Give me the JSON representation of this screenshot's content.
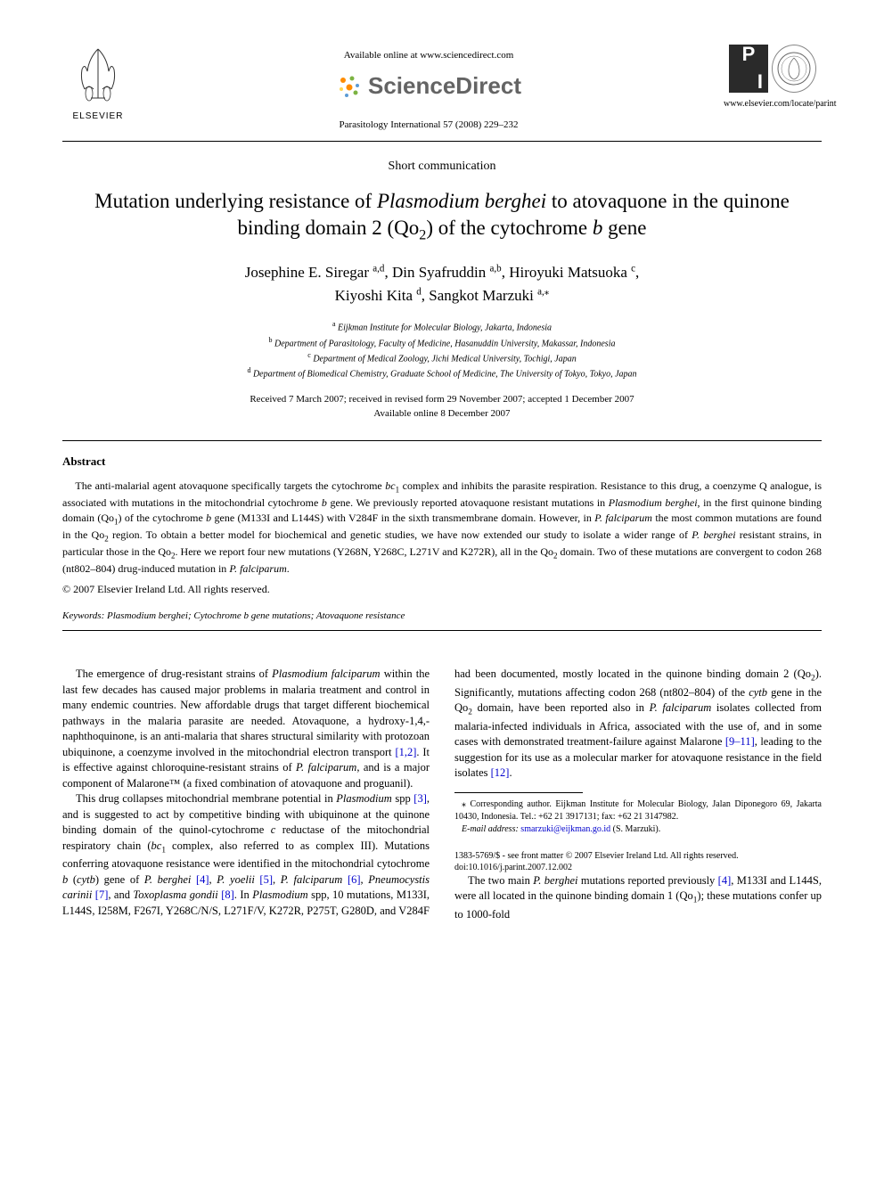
{
  "header": {
    "elsevier_label": "ELSEVIER",
    "available_online": "Available online at www.sciencedirect.com",
    "sciencedirect": "ScienceDirect",
    "journal_citation": "Parasitology International 57 (2008) 229–232",
    "journal_url": "www.elsevier.com/locate/parint",
    "pi_p": "P",
    "pi_i": "I"
  },
  "article": {
    "type": "Short communication",
    "title_part1": "Mutation underlying resistance of ",
    "title_italic1": "Plasmodium berghei",
    "title_part2": " to atovaquone in the quinone binding domain 2 (Qo",
    "title_sub": "2",
    "title_part3": ") of the cytochrome ",
    "title_italic2": "b",
    "title_part4": " gene"
  },
  "authors": {
    "a1_name": "Josephine E. Siregar",
    "a1_aff": "a,d",
    "a2_name": "Din Syafruddin",
    "a2_aff": "a,b",
    "a3_name": "Hiroyuki Matsuoka",
    "a3_aff": "c",
    "a4_name": "Kiyoshi Kita",
    "a4_aff": "d",
    "a5_name": "Sangkot Marzuki",
    "a5_aff": "a,",
    "a5_star": "⁎"
  },
  "affiliations": {
    "a": "Eijkman Institute for Molecular Biology, Jakarta, Indonesia",
    "b": "Department of Parasitology, Faculty of Medicine, Hasanuddin University, Makassar, Indonesia",
    "c": "Department of Medical Zoology, Jichi Medical University, Tochigi, Japan",
    "d": "Department of Biomedical Chemistry, Graduate School of Medicine, The University of Tokyo, Tokyo, Japan"
  },
  "dates": {
    "line1": "Received 7 March 2007; received in revised form 29 November 2007; accepted 1 December 2007",
    "line2": "Available online 8 December 2007"
  },
  "abstract": {
    "heading": "Abstract",
    "text_segments": [
      {
        "t": "The anti-malarial agent atovaquone specifically targets the cytochrome "
      },
      {
        "t": "bc",
        "i": true
      },
      {
        "t": "1",
        "sub": true
      },
      {
        "t": " complex and inhibits the parasite respiration. Resistance to this drug, a coenzyme Q analogue, is associated with mutations in the mitochondrial cytochrome "
      },
      {
        "t": "b",
        "i": true
      },
      {
        "t": " gene. We previously reported atovaquone resistant mutations in "
      },
      {
        "t": "Plasmodium berghei",
        "i": true
      },
      {
        "t": ", in the first quinone binding domain (Qo"
      },
      {
        "t": "1",
        "sub": true
      },
      {
        "t": ") of the cytochrome "
      },
      {
        "t": "b",
        "i": true
      },
      {
        "t": " gene (M133I and L144S) with V284F in the sixth transmembrane domain. However, in "
      },
      {
        "t": "P. falciparum",
        "i": true
      },
      {
        "t": " the most common mutations are found in the Qo"
      },
      {
        "t": "2",
        "sub": true
      },
      {
        "t": " region. To obtain a better model for biochemical and genetic studies, we have now extended our study to isolate a wider range of "
      },
      {
        "t": "P. berghei",
        "i": true
      },
      {
        "t": " resistant strains, in particular those in the Qo"
      },
      {
        "t": "2",
        "sub": true
      },
      {
        "t": ". Here we report four new mutations (Y268N, Y268C, L271V and K272R), all in the Qo"
      },
      {
        "t": "2",
        "sub": true
      },
      {
        "t": " domain. Two of these mutations are convergent to codon 268 (nt802–804) drug-induced mutation in "
      },
      {
        "t": "P. falciparum",
        "i": true
      },
      {
        "t": "."
      }
    ],
    "copyright": "© 2007 Elsevier Ireland Ltd. All rights reserved."
  },
  "keywords": {
    "label": "Keywords: ",
    "text": "Plasmodium berghei; Cytochrome b gene mutations; Atovaquone resistance"
  },
  "body": {
    "para1_segments": [
      {
        "t": "The emergence of drug-resistant strains of "
      },
      {
        "t": "Plasmodium falciparum",
        "i": true
      },
      {
        "t": " within the last few decades has caused major problems in malaria treatment and control in many endemic countries. New affordable drugs that target different biochemical pathways in the malaria parasite are needed. Atovaquone, a hydroxy-1,4,-naphthoquinone, is an anti-malaria that shares structural similarity with protozoan ubiquinone, a coenzyme involved in the mitochondrial electron transport "
      },
      {
        "t": "[1,2]",
        "ref": true
      },
      {
        "t": ". It is effective against chloroquine-resistant strains of "
      },
      {
        "t": "P. falciparum",
        "i": true
      },
      {
        "t": ", and is a major component of Malarone™ (a fixed combination of atovaquone and proguanil)."
      }
    ],
    "para2_segments": [
      {
        "t": "This drug collapses mitochondrial membrane potential in "
      },
      {
        "t": "Plasmodium",
        "i": true
      },
      {
        "t": " spp "
      },
      {
        "t": "[3]",
        "ref": true
      },
      {
        "t": ", and is suggested to act by competitive binding with ubiquinone at the quinone binding domain of the quinol-cytochrome "
      },
      {
        "t": "c",
        "i": true
      },
      {
        "t": " reductase of the mitochondrial respiratory chain ("
      },
      {
        "t": "bc",
        "i": true
      },
      {
        "t": "1",
        "sub": true
      },
      {
        "t": " complex, also referred to as complex III). Mutations conferring atovaquone resistance were identified in the mitochondrial cytochrome "
      },
      {
        "t": "b",
        "i": true
      },
      {
        "t": " ("
      },
      {
        "t": "cytb",
        "i": true
      },
      {
        "t": ") gene of "
      },
      {
        "t": "P. berghei",
        "i": true
      },
      {
        "t": " "
      },
      {
        "t": "[4]",
        "ref": true
      },
      {
        "t": ", "
      },
      {
        "t": "P. yoelii",
        "i": true
      },
      {
        "t": " "
      },
      {
        "t": "[5]",
        "ref": true
      },
      {
        "t": ", "
      },
      {
        "t": "P. falciparum",
        "i": true
      },
      {
        "t": " "
      },
      {
        "t": "[6]",
        "ref": true
      },
      {
        "t": ", "
      },
      {
        "t": "Pneumocystis carinii",
        "i": true
      },
      {
        "t": " "
      },
      {
        "t": "[7]",
        "ref": true
      },
      {
        "t": ", and "
      },
      {
        "t": "Toxoplasma gondii",
        "i": true
      },
      {
        "t": " "
      },
      {
        "t": "[8]",
        "ref": true
      },
      {
        "t": ". In "
      },
      {
        "t": "Plasmodium",
        "i": true
      },
      {
        "t": " spp, 10 mutations, M133I, L144S, I258M, F267I, Y268C/N/S, L271F/V, K272R, P275T, G280D, and V284F had been documented, mostly located in the quinone binding domain 2 (Qo"
      },
      {
        "t": "2",
        "sub": true
      },
      {
        "t": "). Significantly, mutations affecting codon 268 (nt802–804) of the "
      },
      {
        "t": "cytb",
        "i": true
      },
      {
        "t": " gene in the Qo"
      },
      {
        "t": "2",
        "sub": true
      },
      {
        "t": " domain, have been reported also in "
      },
      {
        "t": "P. falciparum",
        "i": true
      },
      {
        "t": " isolates collected from malaria-infected individuals in Africa, associated with the use of, and in some cases with demonstrated treatment-failure against Malarone "
      },
      {
        "t": "[9–11]",
        "ref": true
      },
      {
        "t": ", leading to the suggestion for its use as a molecular marker for atovaquone resistance in the field isolates "
      },
      {
        "t": "[12]",
        "ref": true
      },
      {
        "t": "."
      }
    ],
    "para3_segments": [
      {
        "t": "The two main "
      },
      {
        "t": "P. berghei",
        "i": true
      },
      {
        "t": " mutations reported previously "
      },
      {
        "t": "[4]",
        "ref": true
      },
      {
        "t": ", M133I and L144S, were all located in the quinone binding domain 1 (Qo"
      },
      {
        "t": "1",
        "sub": true
      },
      {
        "t": "); these mutations confer up to 1000-fold"
      }
    ]
  },
  "footnote": {
    "corr_label": "⁎ Corresponding author. Eijkman Institute for Molecular Biology, Jalan Diponegoro 69, Jakarta 10430, Indonesia. Tel.: +62 21 3917131; fax: +62 21 3147982.",
    "email_label": "E-mail address: ",
    "email": "smarzuki@eijkman.go.id",
    "email_suffix": " (S. Marzuki)."
  },
  "footer": {
    "issn": "1383-5769/$ - see front matter © 2007 Elsevier Ireland Ltd. All rights reserved.",
    "doi": "doi:10.1016/j.parint.2007.12.002"
  },
  "colors": {
    "text": "#000000",
    "link": "#0000cc",
    "sd_gray": "#646464",
    "sd_orange": "#ff8c00",
    "sd_green": "#7cb342",
    "sd_blue": "#5b9bd5",
    "sd_yellow": "#ffd54f",
    "pi_bg": "#2a2a2a"
  }
}
